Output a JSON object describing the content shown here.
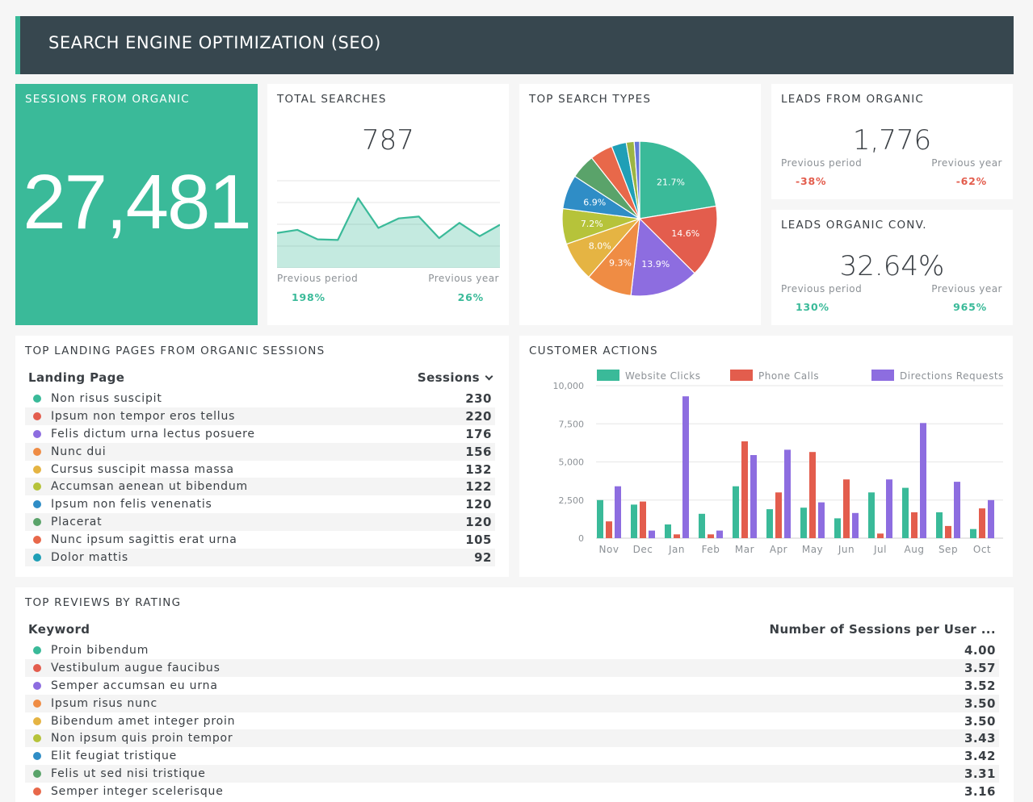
{
  "header": {
    "title": "SEARCH ENGINE OPTIMIZATION (SEO)"
  },
  "sessions": {
    "title": "SESSIONS FROM ORGANIC",
    "value": "27,481"
  },
  "searches": {
    "title": "TOTAL SEARCHES",
    "value": "787",
    "prev_period_label": "Previous period",
    "prev_period_value": "198%",
    "prev_year_label": "Previous year",
    "prev_year_value": "26%",
    "spark": [
      55,
      60,
      45,
      44,
      110,
      63,
      78,
      81,
      47,
      71,
      50,
      68
    ],
    "spark_max": 140,
    "accent": "#3aba99"
  },
  "search_types": {
    "title": "TOP SEARCH TYPES",
    "slices": [
      {
        "value": 21.7,
        "label": "21.7%",
        "color": "#3aba99"
      },
      {
        "value": 14.6,
        "label": "14.6%",
        "color": "#e35d4d"
      },
      {
        "value": 13.9,
        "label": "13.9%",
        "color": "#8d6de0"
      },
      {
        "value": 9.3,
        "label": "9.3%",
        "color": "#ef8c44"
      },
      {
        "value": 8.0,
        "label": "8.0%",
        "color": "#e5b443"
      },
      {
        "value": 7.2,
        "label": "7.2%",
        "color": "#b6c33a"
      },
      {
        "value": 6.9,
        "label": "6.9%",
        "color": "#2f8dc6"
      },
      {
        "value": 5.0,
        "label": "",
        "color": "#5aa36a"
      },
      {
        "value": 4.6,
        "label": "",
        "color": "#e8684a"
      },
      {
        "value": 3.0,
        "label": "",
        "color": "#1f9fb6"
      },
      {
        "value": 1.6,
        "label": "",
        "color": "#9cb543"
      },
      {
        "value": 1.1,
        "label": "",
        "color": "#6577d9"
      }
    ]
  },
  "leads": {
    "title": "LEADS FROM ORGANIC",
    "value": "1,776",
    "prev_period_label": "Previous period",
    "prev_period_value": "-38%",
    "prev_year_label": "Previous year",
    "prev_year_value": "-62%"
  },
  "conv": {
    "title": "LEADS ORGANIC CONV.",
    "value": "32.64%",
    "prev_period_label": "Previous period",
    "prev_period_value": "130%",
    "prev_year_label": "Previous year",
    "prev_year_value": "965%"
  },
  "landing": {
    "title": "TOP LANDING PAGES FROM ORGANIC SESSIONS",
    "col1": "Landing Page",
    "col2": "Sessions",
    "rows": [
      {
        "name": "Non risus suscipit",
        "value": "230",
        "color": "#3aba99"
      },
      {
        "name": "Ipsum non tempor eros tellus",
        "value": "220",
        "color": "#e35d4d"
      },
      {
        "name": "Felis dictum urna lectus posuere",
        "value": "176",
        "color": "#8d6de0"
      },
      {
        "name": "Nunc dui",
        "value": "156",
        "color": "#ef8c44"
      },
      {
        "name": "Cursus suscipit massa massa",
        "value": "132",
        "color": "#e5b443"
      },
      {
        "name": "Accumsan aenean ut bibendum",
        "value": "122",
        "color": "#b6c33a"
      },
      {
        "name": "Ipsum non felis venenatis",
        "value": "120",
        "color": "#2f8dc6"
      },
      {
        "name": "Placerat",
        "value": "120",
        "color": "#5aa36a"
      },
      {
        "name": "Nunc ipsum sagittis erat urna",
        "value": "105",
        "color": "#e8684a"
      },
      {
        "name": "Dolor mattis",
        "value": "92",
        "color": "#1f9fb6"
      }
    ]
  },
  "actions": {
    "title": "CUSTOMER ACTIONS",
    "chart_data": {
      "type": "bar",
      "categories": [
        "Nov",
        "Dec",
        "Jan",
        "Feb",
        "Mar",
        "Apr",
        "May",
        "Jun",
        "Jul",
        "Aug",
        "Sep",
        "Oct"
      ],
      "series": [
        {
          "name": "Website Clicks",
          "color": "#3aba99",
          "values": [
            2500,
            2200,
            900,
            1600,
            3400,
            1900,
            2000,
            1300,
            3000,
            3300,
            1700,
            600
          ]
        },
        {
          "name": "Phone Calls",
          "color": "#e35d4d",
          "values": [
            1100,
            2400,
            250,
            250,
            6350,
            3000,
            5650,
            3850,
            300,
            1700,
            800,
            1950
          ]
        },
        {
          "name": "Directions Requests",
          "color": "#8d6de0",
          "values": [
            3400,
            500,
            9300,
            500,
            5450,
            5800,
            2350,
            1650,
            3850,
            7550,
            3700,
            2500
          ]
        }
      ],
      "yticks": [
        "10,000",
        "7,500",
        "5,000",
        "2,500",
        "0"
      ],
      "ylim": [
        0,
        10000
      ]
    }
  },
  "reviews": {
    "title": "TOP REVIEWS BY RATING",
    "col1": "Keyword",
    "col2": "Number of Sessions per User ...",
    "rows": [
      {
        "name": "Proin bibendum",
        "value": "4.00",
        "color": "#3aba99"
      },
      {
        "name": "Vestibulum augue faucibus",
        "value": "3.57",
        "color": "#e35d4d"
      },
      {
        "name": "Semper accumsan eu urna",
        "value": "3.52",
        "color": "#8d6de0"
      },
      {
        "name": "Ipsum risus nunc",
        "value": "3.50",
        "color": "#ef8c44"
      },
      {
        "name": "Bibendum amet integer proin",
        "value": "3.50",
        "color": "#e5b443"
      },
      {
        "name": "Non ipsum quis proin tempor",
        "value": "3.43",
        "color": "#b6c33a"
      },
      {
        "name": "Elit feugiat tristique",
        "value": "3.42",
        "color": "#2f8dc6"
      },
      {
        "name": "Felis ut sed nisi tristique",
        "value": "3.31",
        "color": "#5aa36a"
      },
      {
        "name": "Semper integer scelerisque",
        "value": "3.16",
        "color": "#e8684a"
      }
    ]
  }
}
